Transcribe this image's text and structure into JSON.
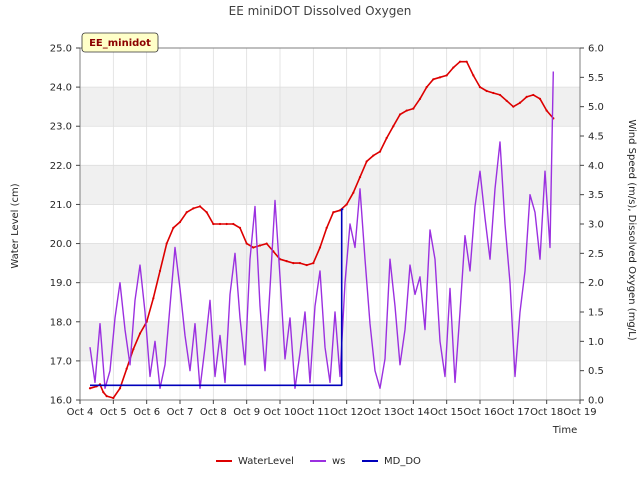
{
  "chart_data": {
    "type": "line",
    "title": "EE miniDOT Dissolved Oxygen",
    "badge": "EE_minidot",
    "xlabel": "Time",
    "ylabel_left": "Water Level (cm)",
    "ylabel_right": "Wind Speed (m/s), Dissolved Oxygen (mg/L)",
    "x_ticks": [
      "Oct 4",
      "Oct 5",
      "Oct 6",
      "Oct 7",
      "Oct 8",
      "Oct 9",
      "Oct 10",
      "Oct 11",
      "Oct 12",
      "Oct 13",
      "Oct 14",
      "Oct 15",
      "Oct 16",
      "Oct 17",
      "Oct 18",
      "Oct 19"
    ],
    "xlim": [
      4,
      19
    ],
    "ylim_left": [
      16.0,
      25.0
    ],
    "ylim_right": [
      0.0,
      6.0
    ],
    "yticks_left": [
      "16.0",
      "17.0",
      "18.0",
      "19.0",
      "20.0",
      "21.0",
      "22.0",
      "23.0",
      "24.0",
      "25.0"
    ],
    "yticks_right": [
      "0.0",
      "0.5",
      "1.0",
      "1.5",
      "2.0",
      "2.5",
      "3.0",
      "3.5",
      "4.0",
      "4.5",
      "5.0",
      "5.5",
      "6.0"
    ],
    "grid": true,
    "legend_position": "bottom-center",
    "colors": {
      "WaterLevel": "#dd0000",
      "ws": "#9b30e0",
      "MD_DO": "#0000bb"
    },
    "series": [
      {
        "name": "WaterLevel",
        "axis": "left",
        "x": [
          4.3,
          4.5,
          4.6,
          4.7,
          4.8,
          5.0,
          5.2,
          5.4,
          5.6,
          5.8,
          6.0,
          6.2,
          6.4,
          6.6,
          6.8,
          7.0,
          7.2,
          7.4,
          7.6,
          7.8,
          8.0,
          8.2,
          8.4,
          8.6,
          8.8,
          9.0,
          9.2,
          9.4,
          9.6,
          9.8,
          10.0,
          10.2,
          10.4,
          10.6,
          10.8,
          11.0,
          11.2,
          11.4,
          11.6,
          11.8,
          12.0,
          12.2,
          12.4,
          12.6,
          12.8,
          13.0,
          13.2,
          13.4,
          13.6,
          13.8,
          14.0,
          14.2,
          14.4,
          14.6,
          14.8,
          15.0,
          15.2,
          15.4,
          15.6,
          15.8,
          16.0,
          16.2,
          16.4,
          16.6,
          16.8,
          17.0,
          17.2,
          17.4,
          17.6,
          17.8,
          18.0,
          18.2
        ],
        "y": [
          16.3,
          16.35,
          16.4,
          16.2,
          16.1,
          16.05,
          16.3,
          16.8,
          17.3,
          17.7,
          18.0,
          18.6,
          19.3,
          20.0,
          20.4,
          20.55,
          20.8,
          20.9,
          20.95,
          20.8,
          20.5,
          20.5,
          20.5,
          20.5,
          20.4,
          20.0,
          19.9,
          19.95,
          20.0,
          19.8,
          19.6,
          19.55,
          19.5,
          19.5,
          19.45,
          19.5,
          19.9,
          20.4,
          20.8,
          20.85,
          21.0,
          21.3,
          21.7,
          22.1,
          22.25,
          22.35,
          22.7,
          23.0,
          23.3,
          23.4,
          23.45,
          23.7,
          24.0,
          24.2,
          24.25,
          24.3,
          24.5,
          24.65,
          24.65,
          24.3,
          24.0,
          23.9,
          23.85,
          23.8,
          23.65,
          23.5,
          23.6,
          23.75,
          23.8,
          23.7,
          23.4,
          23.2
        ]
      },
      {
        "name": "ws",
        "axis": "right",
        "x": [
          4.3,
          4.45,
          4.6,
          4.75,
          4.9,
          5.05,
          5.2,
          5.35,
          5.5,
          5.65,
          5.8,
          5.95,
          6.1,
          6.25,
          6.4,
          6.55,
          6.7,
          6.85,
          7.0,
          7.15,
          7.3,
          7.45,
          7.6,
          7.75,
          7.9,
          8.05,
          8.2,
          8.35,
          8.5,
          8.65,
          8.8,
          8.95,
          9.1,
          9.25,
          9.4,
          9.55,
          9.7,
          9.85,
          10.0,
          10.15,
          10.3,
          10.45,
          10.6,
          10.75,
          10.9,
          11.05,
          11.2,
          11.35,
          11.5,
          11.65,
          11.8,
          11.95,
          12.1,
          12.25,
          12.4,
          12.55,
          12.7,
          12.85,
          13.0,
          13.15,
          13.3,
          13.45,
          13.6,
          13.75,
          13.9,
          14.05,
          14.2,
          14.35,
          14.5,
          14.65,
          14.8,
          14.95,
          15.1,
          15.25,
          15.4,
          15.55,
          15.7,
          15.85,
          16.0,
          16.15,
          16.3,
          16.45,
          16.6,
          16.75,
          16.9,
          17.05,
          17.2,
          17.35,
          17.5,
          17.65,
          17.8,
          17.95,
          18.1,
          18.2
        ],
        "y": [
          0.9,
          0.3,
          1.3,
          0.2,
          0.5,
          1.4,
          2.0,
          1.2,
          0.6,
          1.7,
          2.3,
          1.5,
          0.4,
          1.0,
          0.2,
          0.6,
          1.6,
          2.6,
          1.9,
          1.1,
          0.5,
          1.3,
          0.2,
          0.9,
          1.7,
          0.4,
          1.1,
          0.3,
          1.8,
          2.5,
          1.4,
          0.6,
          2.4,
          3.3,
          1.6,
          0.5,
          1.9,
          3.4,
          2.1,
          0.7,
          1.4,
          0.2,
          0.8,
          1.5,
          0.3,
          1.6,
          2.2,
          0.9,
          0.3,
          1.5,
          0.4,
          2.0,
          3.0,
          2.6,
          3.6,
          2.4,
          1.3,
          0.5,
          0.2,
          0.7,
          2.4,
          1.6,
          0.6,
          1.2,
          2.3,
          1.8,
          2.1,
          1.2,
          2.9,
          2.4,
          1.0,
          0.4,
          1.9,
          0.3,
          1.5,
          2.8,
          2.2,
          3.3,
          3.9,
          3.1,
          2.4,
          3.6,
          4.4,
          3.0,
          2.0,
          0.4,
          1.5,
          2.2,
          3.5,
          3.2,
          2.4,
          3.9,
          2.6,
          5.6
        ]
      },
      {
        "name": "MD_DO",
        "axis": "right",
        "x": [
          4.3,
          11.85,
          11.85,
          11.9
        ],
        "y": [
          0.25,
          0.25,
          3.25,
          3.25
        ]
      }
    ]
  }
}
